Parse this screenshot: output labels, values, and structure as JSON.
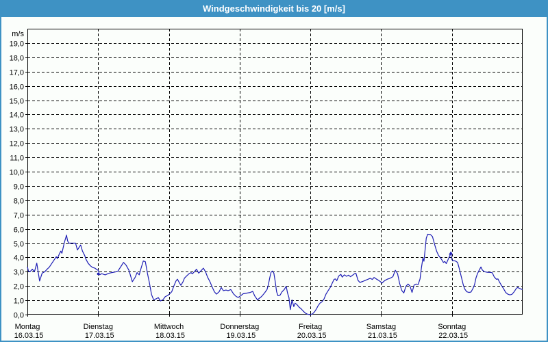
{
  "window": {
    "title": "Windgeschwindigkeit bis 20 [m/s]",
    "title_bg": "#3E92C4",
    "border_color": "#3E92C4",
    "background": "#FBFEFB"
  },
  "chart_data": {
    "type": "line",
    "title": "Windgeschwindigkeit bis 20 [m/s]",
    "ylabel": "m/s",
    "xlabel": "",
    "ylim": [
      0,
      20
    ],
    "grid": "dashed-black",
    "legend": "none",
    "line_color": "#1C1CB4",
    "grid_color": "#000000",
    "y_tick_labels": [
      "19,0",
      "18,0",
      "17,0",
      "16,0",
      "15,0",
      "14,0",
      "13,0",
      "12,0",
      "11,0",
      "10,0",
      "9,0",
      "8,0",
      "7,0",
      "6,0",
      "5,0",
      "4,0",
      "3,0",
      "2,0",
      "1,0",
      "0,0"
    ],
    "x_days": [
      {
        "label": "Montag",
        "date": "16.03.15"
      },
      {
        "label": "Dienstag",
        "date": "17.03.15"
      },
      {
        "label": "Mittwoch",
        "date": "18.03.15"
      },
      {
        "label": "Donnerstag",
        "date": "19.03.15"
      },
      {
        "label": "Freitag",
        "date": "20.03.15"
      },
      {
        "label": "Samstag",
        "date": "21.03.15"
      },
      {
        "label": "Sonntag",
        "date": "22.03.15"
      }
    ],
    "series": [
      {
        "name": "Windgeschwindigkeit [m/s]",
        "points": [
          [
            0.0,
            3.35
          ],
          [
            0.015,
            3.05
          ],
          [
            0.037,
            3.0
          ],
          [
            0.07,
            3.17
          ],
          [
            0.1,
            3.0
          ],
          [
            0.133,
            3.6
          ],
          [
            0.172,
            2.35
          ],
          [
            0.208,
            2.9
          ],
          [
            0.246,
            3.0
          ],
          [
            0.278,
            3.17
          ],
          [
            0.311,
            3.33
          ],
          [
            0.343,
            3.57
          ],
          [
            0.375,
            3.8
          ],
          [
            0.408,
            4.05
          ],
          [
            0.423,
            3.92
          ],
          [
            0.456,
            4.29
          ],
          [
            0.472,
            4.44
          ],
          [
            0.488,
            4.29
          ],
          [
            0.52,
            5.0
          ],
          [
            0.553,
            5.56
          ],
          [
            0.568,
            5.16
          ],
          [
            0.585,
            5.0
          ],
          [
            0.681,
            5.0
          ],
          [
            0.707,
            4.52
          ],
          [
            0.752,
            4.87
          ],
          [
            0.778,
            4.44
          ],
          [
            0.81,
            4.13
          ],
          [
            0.826,
            3.89
          ],
          [
            0.858,
            3.6
          ],
          [
            0.891,
            3.41
          ],
          [
            0.923,
            3.29
          ],
          [
            0.955,
            3.25
          ],
          [
            0.988,
            3.13
          ],
          [
            1.0,
            3.1
          ],
          [
            1.02,
            2.78
          ],
          [
            1.05,
            2.86
          ],
          [
            1.1,
            2.78
          ],
          [
            1.145,
            2.88
          ],
          [
            1.193,
            2.94
          ],
          [
            1.242,
            2.98
          ],
          [
            1.28,
            3.05
          ],
          [
            1.32,
            3.35
          ],
          [
            1.358,
            3.65
          ],
          [
            1.396,
            3.45
          ],
          [
            1.435,
            3.1
          ],
          [
            1.483,
            2.3
          ],
          [
            1.522,
            2.6
          ],
          [
            1.55,
            2.94
          ],
          [
            1.58,
            2.78
          ],
          [
            1.61,
            3.3
          ],
          [
            1.638,
            3.75
          ],
          [
            1.667,
            3.7
          ],
          [
            1.696,
            2.9
          ],
          [
            1.725,
            2.2
          ],
          [
            1.754,
            1.4
          ],
          [
            1.783,
            1.05
          ],
          [
            1.82,
            1.1
          ],
          [
            1.85,
            1.19
          ],
          [
            1.88,
            0.95
          ],
          [
            1.918,
            1.05
          ],
          [
            1.947,
            1.25
          ],
          [
            1.986,
            1.35
          ],
          [
            2.01,
            1.45
          ],
          [
            2.04,
            1.6
          ],
          [
            2.07,
            2.0
          ],
          [
            2.1,
            2.35
          ],
          [
            2.12,
            2.48
          ],
          [
            2.14,
            2.3
          ],
          [
            2.17,
            2.05
          ],
          [
            2.2,
            2.3
          ],
          [
            2.22,
            2.55
          ],
          [
            2.25,
            2.7
          ],
          [
            2.285,
            2.86
          ],
          [
            2.314,
            2.94
          ],
          [
            2.33,
            2.85
          ],
          [
            2.36,
            3.0
          ],
          [
            2.39,
            3.17
          ],
          [
            2.42,
            2.9
          ],
          [
            2.46,
            3.1
          ],
          [
            2.487,
            3.25
          ],
          [
            2.517,
            3.0
          ],
          [
            2.546,
            2.62
          ],
          [
            2.58,
            2.3
          ],
          [
            2.614,
            1.9
          ],
          [
            2.643,
            1.6
          ],
          [
            2.672,
            1.43
          ],
          [
            2.71,
            1.6
          ],
          [
            2.74,
            1.9
          ],
          [
            2.77,
            1.67
          ],
          [
            2.807,
            1.72
          ],
          [
            2.836,
            1.67
          ],
          [
            2.875,
            1.75
          ],
          [
            2.913,
            1.45
          ],
          [
            2.95,
            1.27
          ],
          [
            2.98,
            1.2
          ],
          [
            3.01,
            1.3
          ],
          [
            3.05,
            1.46
          ],
          [
            3.1,
            1.5
          ],
          [
            3.15,
            1.55
          ],
          [
            3.184,
            1.62
          ],
          [
            3.213,
            1.3
          ],
          [
            3.252,
            1.03
          ],
          [
            3.28,
            1.15
          ],
          [
            3.31,
            1.27
          ],
          [
            3.35,
            1.5
          ],
          [
            3.387,
            1.75
          ],
          [
            3.406,
            2.1
          ],
          [
            3.426,
            2.6
          ],
          [
            3.445,
            2.97
          ],
          [
            3.464,
            3.05
          ],
          [
            3.484,
            2.9
          ],
          [
            3.503,
            2.3
          ],
          [
            3.522,
            1.6
          ],
          [
            3.542,
            1.32
          ],
          [
            3.57,
            1.35
          ],
          [
            3.6,
            1.6
          ],
          [
            3.63,
            1.75
          ],
          [
            3.658,
            1.98
          ],
          [
            3.677,
            1.5
          ],
          [
            3.697,
            1.19
          ],
          [
            3.716,
            0.35
          ],
          [
            3.74,
            1.03
          ],
          [
            3.765,
            0.56
          ],
          [
            3.784,
            0.8
          ],
          [
            3.81,
            0.7
          ],
          [
            3.84,
            0.52
          ],
          [
            3.87,
            0.4
          ],
          [
            3.9,
            0.24
          ],
          [
            3.93,
            0.1
          ],
          [
            3.958,
            0.03
          ],
          [
            3.997,
            0.0
          ],
          [
            4.03,
            0.05
          ],
          [
            4.06,
            0.2
          ],
          [
            4.086,
            0.4
          ],
          [
            4.106,
            0.6
          ],
          [
            4.135,
            0.8
          ],
          [
            4.164,
            0.9
          ],
          [
            4.193,
            1.1
          ],
          [
            4.22,
            1.43
          ],
          [
            4.25,
            1.67
          ],
          [
            4.28,
            1.9
          ],
          [
            4.31,
            2.22
          ],
          [
            4.334,
            2.46
          ],
          [
            4.353,
            2.5
          ],
          [
            4.372,
            2.37
          ],
          [
            4.4,
            2.7
          ],
          [
            4.43,
            2.82
          ],
          [
            4.45,
            2.62
          ],
          [
            4.48,
            2.78
          ],
          [
            4.51,
            2.68
          ],
          [
            4.54,
            2.76
          ],
          [
            4.566,
            2.65
          ],
          [
            4.595,
            2.75
          ],
          [
            4.624,
            2.86
          ],
          [
            4.643,
            2.89
          ],
          [
            4.672,
            2.4
          ],
          [
            4.7,
            2.25
          ],
          [
            4.74,
            2.32
          ],
          [
            4.78,
            2.4
          ],
          [
            4.817,
            2.48
          ],
          [
            4.846,
            2.54
          ],
          [
            4.875,
            2.46
          ],
          [
            4.9,
            2.6
          ],
          [
            4.93,
            2.5
          ],
          [
            4.962,
            2.4
          ],
          [
            4.99,
            2.3
          ],
          [
            5.01,
            2.2
          ],
          [
            5.05,
            2.38
          ],
          [
            5.088,
            2.48
          ],
          [
            5.126,
            2.54
          ],
          [
            5.165,
            2.65
          ],
          [
            5.2,
            3.1
          ],
          [
            5.232,
            2.86
          ],
          [
            5.26,
            2.2
          ],
          [
            5.29,
            1.7
          ],
          [
            5.32,
            1.51
          ],
          [
            5.35,
            1.98
          ],
          [
            5.38,
            2.14
          ],
          [
            5.407,
            2.0
          ],
          [
            5.436,
            1.55
          ],
          [
            5.465,
            2.06
          ],
          [
            5.494,
            2.14
          ],
          [
            5.523,
            2.1
          ],
          [
            5.55,
            2.5
          ],
          [
            5.57,
            3.3
          ],
          [
            5.59,
            3.95
          ],
          [
            5.605,
            3.73
          ],
          [
            5.62,
            4.5
          ],
          [
            5.638,
            5.35
          ],
          [
            5.658,
            5.62
          ],
          [
            5.697,
            5.6
          ],
          [
            5.726,
            5.45
          ],
          [
            5.755,
            4.92
          ],
          [
            5.784,
            4.44
          ],
          [
            5.81,
            4.15
          ],
          [
            5.85,
            3.89
          ],
          [
            5.88,
            3.65
          ],
          [
            5.9,
            3.72
          ],
          [
            5.92,
            3.57
          ],
          [
            5.95,
            3.9
          ],
          [
            5.985,
            4.29
          ],
          [
            5.995,
            3.9
          ],
          [
            6.01,
            3.78
          ],
          [
            6.05,
            3.75
          ],
          [
            6.08,
            3.65
          ],
          [
            6.1,
            3.3
          ],
          [
            6.12,
            2.9
          ],
          [
            6.14,
            2.5
          ],
          [
            6.16,
            2.1
          ],
          [
            6.18,
            1.8
          ],
          [
            6.21,
            1.6
          ],
          [
            6.24,
            1.55
          ],
          [
            6.27,
            1.58
          ],
          [
            6.3,
            1.85
          ],
          [
            6.32,
            2.1
          ],
          [
            6.34,
            2.55
          ],
          [
            6.36,
            2.85
          ],
          [
            6.39,
            3.15
          ],
          [
            6.41,
            3.33
          ],
          [
            6.43,
            3.12
          ],
          [
            6.46,
            3.0
          ],
          [
            6.5,
            2.96
          ],
          [
            6.54,
            2.95
          ],
          [
            6.57,
            2.93
          ],
          [
            6.6,
            2.62
          ],
          [
            6.63,
            2.47
          ],
          [
            6.65,
            2.5
          ],
          [
            6.67,
            2.3
          ],
          [
            6.7,
            2.05
          ],
          [
            6.73,
            1.82
          ],
          [
            6.76,
            1.55
          ],
          [
            6.79,
            1.43
          ],
          [
            6.82,
            1.38
          ],
          [
            6.85,
            1.42
          ],
          [
            6.88,
            1.6
          ],
          [
            6.91,
            1.83
          ],
          [
            6.93,
            1.9
          ],
          [
            6.96,
            1.82
          ],
          [
            6.997,
            1.75
          ]
        ]
      }
    ],
    "markers": [
      {
        "day": 1.0,
        "value": 2.85,
        "shape": "square"
      },
      {
        "day": 5.985,
        "value": 4.29,
        "shape": "triangle"
      }
    ]
  }
}
